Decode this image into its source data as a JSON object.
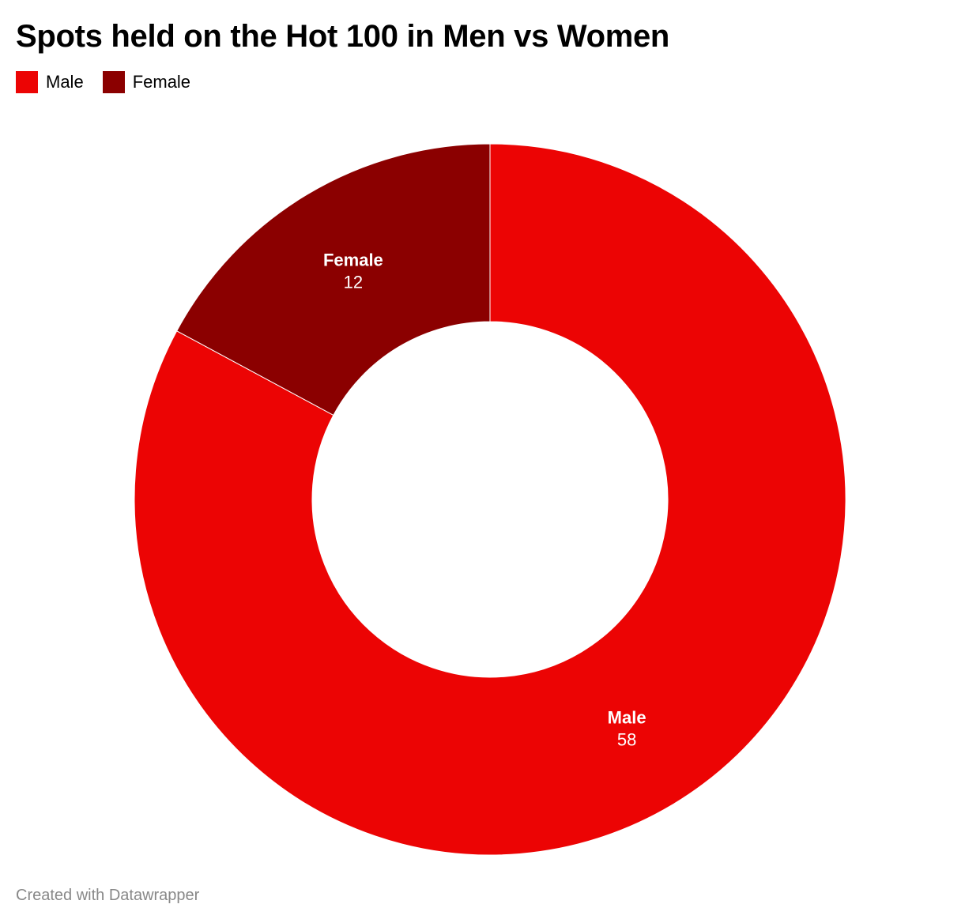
{
  "chart_data": {
    "type": "pie",
    "style": "donut",
    "title": "Spots held on the Hot 100 in Men vs Women",
    "categories": [
      "Male",
      "Female"
    ],
    "values": [
      58,
      12
    ],
    "colors": [
      "#ec0404",
      "#8b0000"
    ],
    "legend_placement": "top-left"
  },
  "footer": "Created with Datawrapper"
}
